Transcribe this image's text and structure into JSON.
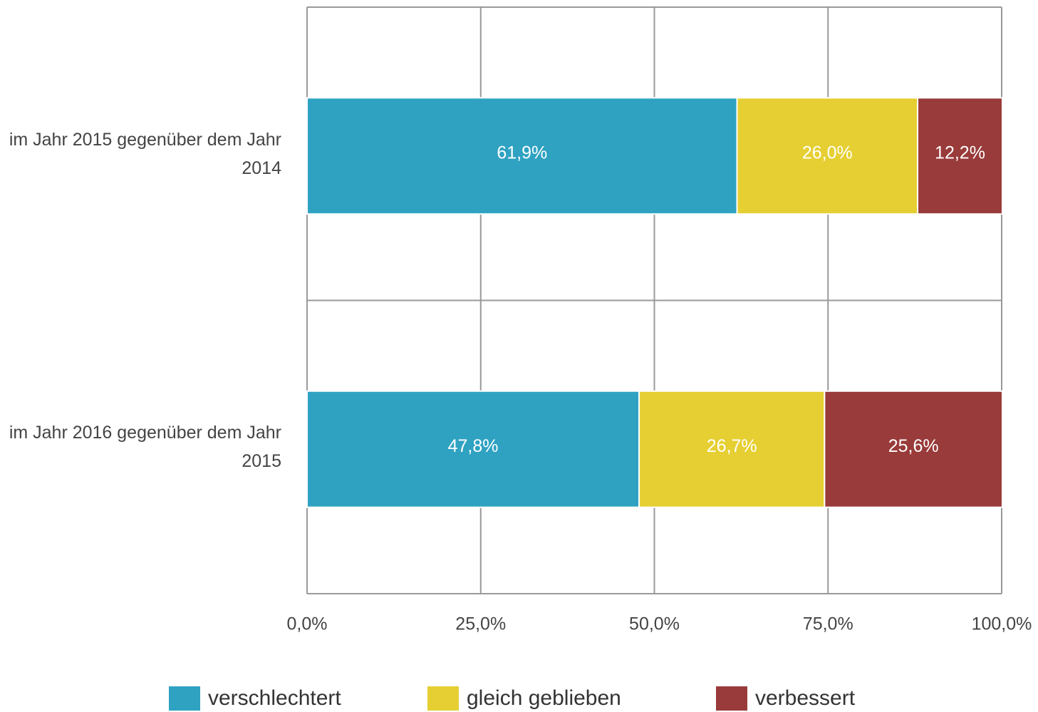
{
  "chart_data": {
    "type": "stacked_bar_horizontal",
    "categories": [
      "im Jahr 2015 gegenüber dem Jahr 2014",
      "im Jahr 2016 gegenüber dem Jahr 2015"
    ],
    "series": [
      {
        "name": "verschlechtert",
        "color": "#2fa2c2",
        "values": [
          61.9,
          47.8
        ],
        "value_labels": [
          "61,9%",
          "47,8%"
        ]
      },
      {
        "name": "gleich geblieben",
        "color": "#e6cf33",
        "values": [
          26.0,
          26.7
        ],
        "value_labels": [
          "26,0%",
          "26,7%"
        ]
      },
      {
        "name": "verbessert",
        "color": "#983b3a",
        "values": [
          12.2,
          25.6
        ],
        "value_labels": [
          "12,2%",
          "25,6%"
        ]
      }
    ],
    "xlim": [
      0,
      100
    ],
    "xticks": [
      {
        "value": 0,
        "label": "0,0%"
      },
      {
        "value": 25,
        "label": "25,0%"
      },
      {
        "value": 50,
        "label": "50,0%"
      },
      {
        "value": 75,
        "label": "75,0%"
      },
      {
        "value": 100,
        "label": "100,0%"
      }
    ],
    "grid": true,
    "legend": "bottom"
  }
}
